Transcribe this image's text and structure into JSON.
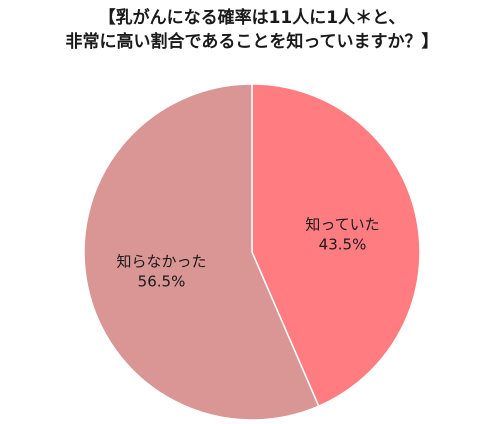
{
  "title_lines": [
    "【乳がんになる確率は11人に1人＊と、",
    "非常に高い割合であることを知っていますか？】"
  ],
  "chart_data": {
    "type": "pie",
    "title": "【乳がんになる確率は11人に1人＊と、非常に高い割合であることを知っていますか？】",
    "slices": [
      {
        "label": "知っていた",
        "value": 43.5,
        "value_label": "43.5%",
        "color": "#ff7c80"
      },
      {
        "label": "知らなかった",
        "value": 56.5,
        "value_label": "56.5%",
        "color": "#d99694"
      }
    ],
    "start": "12 o'clock",
    "direction": "clockwise"
  }
}
